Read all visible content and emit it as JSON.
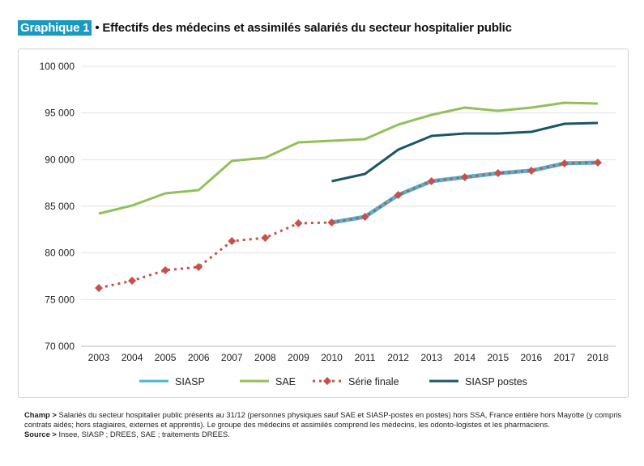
{
  "header": {
    "tag": "Graphique 1",
    "title": "• Effectifs des médecins et assimilés salariés du secteur hospitalier public"
  },
  "chart_data": {
    "type": "line",
    "x": [
      2003,
      2004,
      2005,
      2006,
      2007,
      2008,
      2009,
      2010,
      2011,
      2012,
      2013,
      2014,
      2015,
      2016,
      2017,
      2018
    ],
    "ylim": [
      70000,
      100000
    ],
    "yticks": [
      "70 000",
      "75 000",
      "80 000",
      "85 000",
      "90 000",
      "95 000",
      "100 000"
    ],
    "grid": true,
    "legend": "bottom",
    "series": [
      {
        "name": "SIASP",
        "color": "#4fb3d1",
        "style": "solid",
        "values": [
          null,
          null,
          null,
          null,
          null,
          null,
          null,
          83270,
          83870,
          86210,
          87690,
          88120,
          88550,
          88820,
          89600,
          89680
        ]
      },
      {
        "name": "SAE",
        "color": "#92c05a",
        "style": "solid",
        "values": [
          84220,
          85090,
          86390,
          86730,
          89860,
          90200,
          91850,
          92020,
          92200,
          93760,
          94800,
          95580,
          95230,
          95580,
          96100,
          96010
        ]
      },
      {
        "name": "Série finale",
        "color": "#c8504c",
        "style": "dotted-diamond",
        "values": [
          76240,
          77020,
          78150,
          78500,
          81270,
          81620,
          83180,
          83270,
          83870,
          86210,
          87690,
          88120,
          88550,
          88820,
          89600,
          89680
        ]
      },
      {
        "name": "SIASP postes",
        "color": "#1e5566",
        "style": "solid",
        "values": [
          null,
          null,
          null,
          null,
          null,
          null,
          null,
          87690,
          88470,
          91070,
          92540,
          92800,
          92800,
          92980,
          93840,
          93930
        ]
      }
    ]
  },
  "notes": {
    "champ_label": "Champ >",
    "champ_text": " Salariés du secteur hospitalier public présents au 31/12 (personnes physiques sauf SAE et SIASP-postes en postes) hors SSA, France entière hors Mayotte (y compris contrats aidés; hors stagiaires, externes et apprentis). Le groupe des médecins et assimilés comprend les médecins, les odonto-logistes et les pharmaciens.",
    "source_label": "Source >",
    "source_text": " Insee, SIASP ; DREES, SAE ; traitements DREES."
  }
}
